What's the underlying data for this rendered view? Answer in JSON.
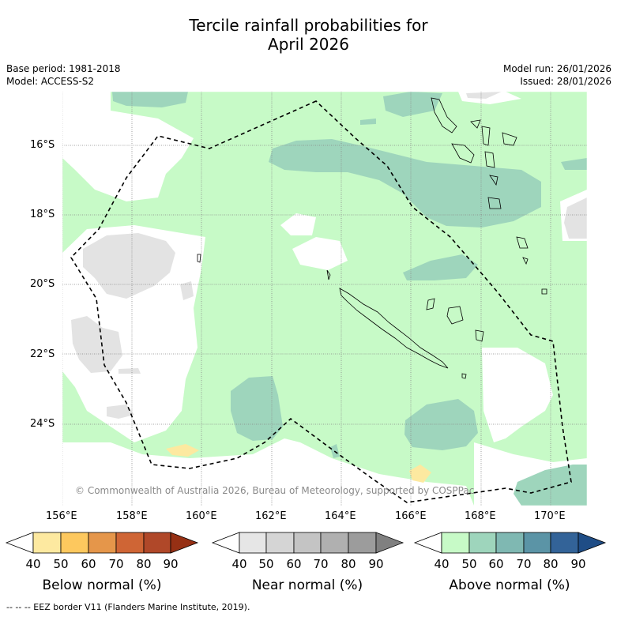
{
  "title_line1": "Tercile rainfall probabilities for",
  "title_line2": "April 2026",
  "meta": {
    "base_period": "Base period: 1981-2018",
    "model": "Model: ACCESS-S2",
    "model_run": "Model run: 26/01/2026",
    "issued": "Issued: 28/01/2026"
  },
  "copyright": "© Commonwealth of Australia 2026, Bureau of Meteorology, supported by COSPPac",
  "axes": {
    "lon_labels": [
      "156°E",
      "158°E",
      "160°E",
      "162°E",
      "164°E",
      "166°E",
      "168°E",
      "170°E"
    ],
    "lat_labels": [
      "16°S",
      "18°S",
      "20°S",
      "22°S",
      "24°S"
    ]
  },
  "colorbars": [
    {
      "title": "Below normal (%)",
      "ticks": [
        "40",
        "50",
        "60",
        "70",
        "80",
        "90"
      ],
      "colors": [
        "#ffffff",
        "#fde9a0",
        "#fdc85e",
        "#e5964a",
        "#cf6535",
        "#b04829",
        "#963014"
      ]
    },
    {
      "title": "Near normal (%)",
      "ticks": [
        "40",
        "50",
        "60",
        "70",
        "80",
        "90"
      ],
      "colors": [
        "#ffffff",
        "#e6e6e6",
        "#d5d5d5",
        "#c4c4c4",
        "#b0b0b0",
        "#9c9c9c",
        "#808080"
      ]
    },
    {
      "title": "Above normal (%)",
      "ticks": [
        "40",
        "50",
        "60",
        "70",
        "80",
        "90"
      ],
      "colors": [
        "#ffffff",
        "#c7fac7",
        "#9ed5bc",
        "#7fb8b2",
        "#5b94a6",
        "#336398",
        "#1f4d86"
      ]
    }
  ],
  "footnote": "-- -- -- EEZ border V11 (Flanders Marine Institute, 2019).",
  "colors": {
    "above_50": "#c7fac7",
    "above_60": "#9ed5bc",
    "near_50": "#e3e3e3",
    "below_50": "#fde9a0",
    "grid": "#888888"
  }
}
